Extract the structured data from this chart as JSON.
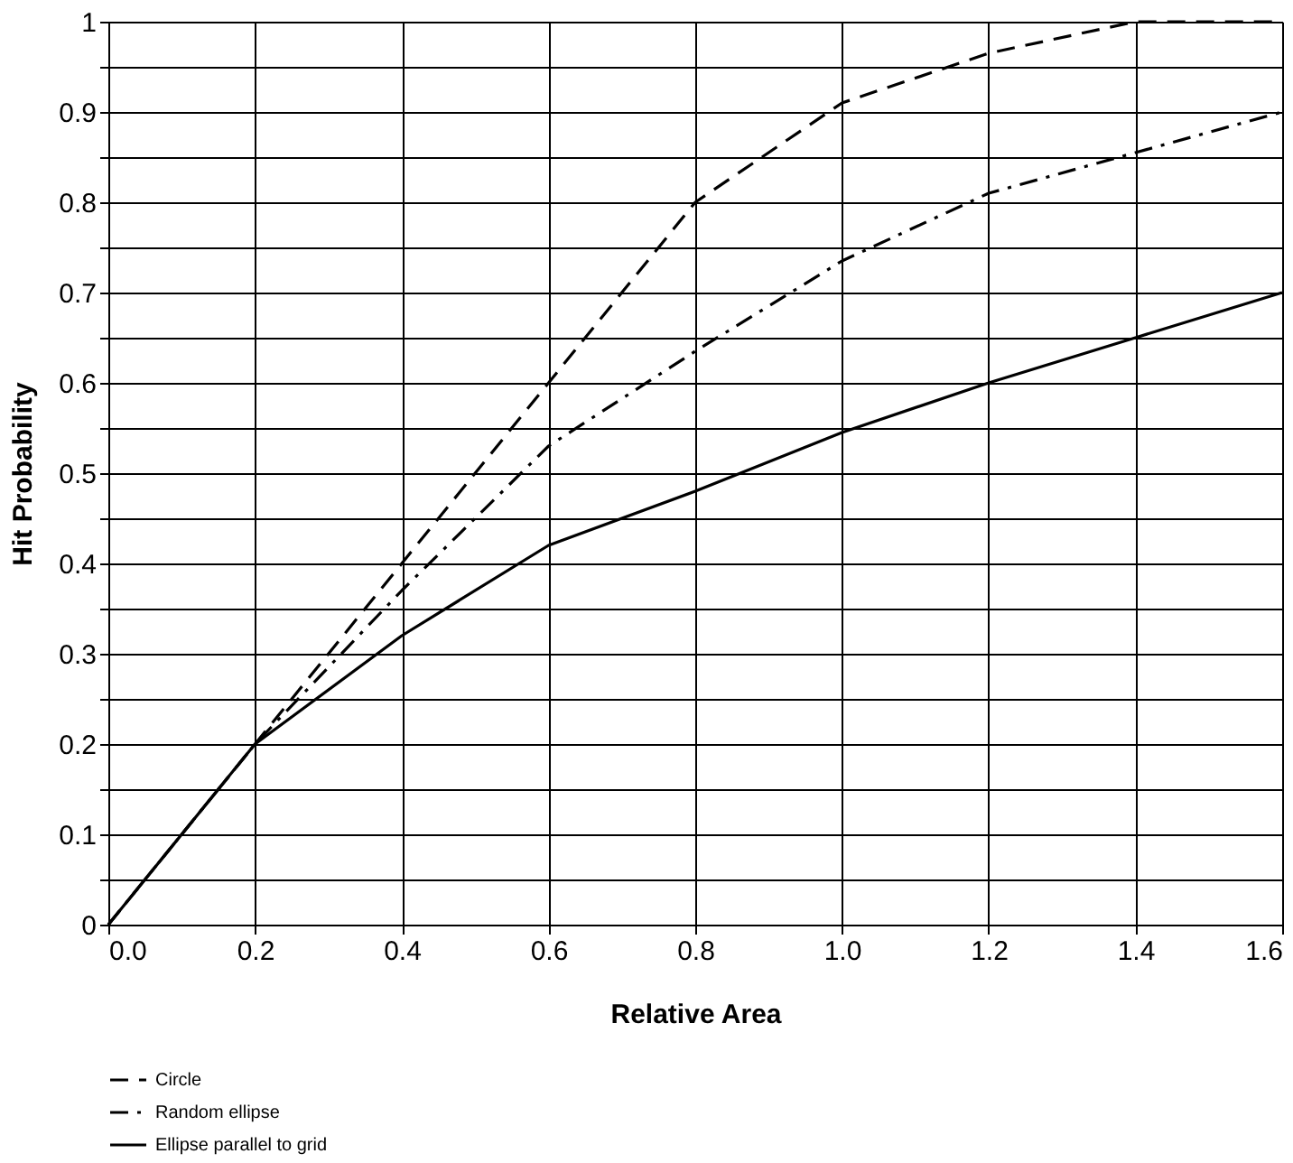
{
  "chart_data": {
    "type": "line",
    "xlabel": "Relative Area",
    "ylabel": "Hit Probability",
    "x": [
      0,
      0.2,
      0.4,
      0.6,
      0.8,
      1.0,
      1.2,
      1.4,
      1.6
    ],
    "series": [
      {
        "name": "Circle",
        "color": "#000000",
        "line_style": "dashed",
        "values": [
          0,
          0.2,
          0.4,
          0.6,
          0.8,
          0.91,
          0.965,
          1.0,
          1.0
        ]
      },
      {
        "name": "Random ellipse",
        "color": "#000000",
        "line_style": "dashdot",
        "values": [
          0,
          0.2,
          0.37,
          0.53,
          0.635,
          0.735,
          0.81,
          0.855,
          0.9
        ]
      },
      {
        "name": "Ellipse parallel to grid",
        "color": "#000000",
        "line_style": "solid",
        "values": [
          0,
          0.2,
          0.32,
          0.42,
          0.48,
          0.545,
          0.6,
          0.65,
          0.7
        ]
      }
    ],
    "xlim": [
      0,
      1.6
    ],
    "xticks": [
      {
        "value": 0,
        "label": "0.0"
      },
      0.2,
      0.4,
      0.6,
      0.8,
      {
        "value": 1.0,
        "label": "1.0"
      },
      1.2,
      1.4,
      1.6
    ],
    "ylim": [
      0,
      1
    ],
    "yticks": [
      0,
      {
        "value": 0.05,
        "label": null
      },
      0.1,
      {
        "value": 0.15,
        "label": null
      },
      0.2,
      {
        "value": 0.25,
        "label": null
      },
      0.3,
      {
        "value": 0.35,
        "label": null
      },
      0.4,
      {
        "value": 0.45,
        "label": null
      },
      0.5,
      {
        "value": 0.55,
        "label": null
      },
      0.6,
      {
        "value": 0.65,
        "label": null
      },
      0.7,
      {
        "value": 0.75,
        "label": null
      },
      0.8,
      {
        "value": 0.85,
        "label": null
      },
      0.9,
      {
        "value": 0.95,
        "label": null
      },
      1
    ],
    "grid": true,
    "legend": "bottom",
    "marker": "none"
  }
}
